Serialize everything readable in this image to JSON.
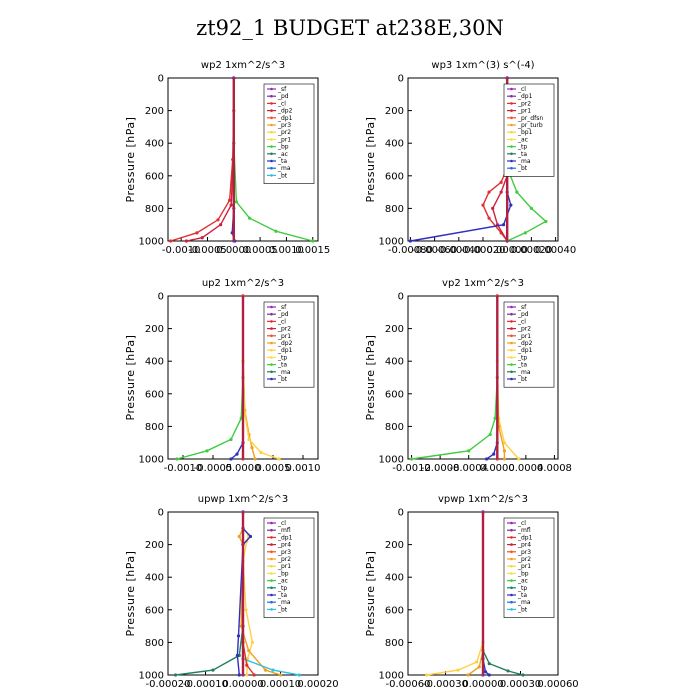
{
  "figure": {
    "title": "zt92_1  BUDGET at238E,30N"
  },
  "chart_data": [
    {
      "type": "line",
      "title": "wp2   1xm^2/s^3",
      "ylabel": "Pressure [hPa]",
      "ylim": [
        1000,
        0
      ],
      "xlim": [
        -0.00125,
        0.0016
      ],
      "xticks": [
        -0.001,
        -0.0005,
        0.0,
        0.0005,
        0.001,
        0.0015
      ],
      "xtick_labels": [
        "-0.0010",
        "-0.0005",
        "0.0000",
        "0.0005",
        "0.0010",
        "0.0015"
      ],
      "yticks": [
        0,
        200,
        400,
        600,
        800,
        1000
      ],
      "legend_position": "top-right",
      "legend": [
        "_sf",
        "_pd",
        "_cl",
        "_dp2",
        "_dp1",
        "_pr3",
        "_pr2",
        "_pr1",
        "_bp",
        "_ac",
        "_ta",
        "_ma",
        "_bt"
      ],
      "series": [
        {
          "name": "_dp2",
          "color": "#e03030",
          "values": [
            [
              0,
              0
            ],
            [
              0,
              200
            ],
            [
              -2e-05,
              500
            ],
            [
              -8e-05,
              750
            ],
            [
              -0.0003,
              870
            ],
            [
              -0.0007,
              950
            ],
            [
              -0.0012,
              1000
            ]
          ]
        },
        {
          "name": "_dp1",
          "color": "#d02040",
          "values": [
            [
              0,
              0
            ],
            [
              0,
              400
            ],
            [
              -5e-05,
              780
            ],
            [
              -0.00025,
              900
            ],
            [
              -0.0006,
              980
            ],
            [
              -0.0009,
              1000
            ]
          ]
        },
        {
          "name": "_bp",
          "color": "#40cc40",
          "values": [
            [
              0,
              0
            ],
            [
              0,
              400
            ],
            [
              5e-05,
              760
            ],
            [
              0.0003,
              860
            ],
            [
              0.0008,
              940
            ],
            [
              0.0015,
              1000
            ]
          ]
        },
        {
          "name": "_ma",
          "color": "#3030c0",
          "values": [
            [
              0,
              0
            ],
            [
              0,
              800
            ],
            [
              -3e-05,
              950
            ],
            [
              2e-05,
              1000
            ]
          ]
        },
        {
          "name": "_bt",
          "color": "#8030a0",
          "values": [
            [
              0,
              0
            ],
            [
              0,
              1000
            ]
          ]
        }
      ]
    },
    {
      "type": "line",
      "title": "wp3   1xm^(3) s^(-4)",
      "ylabel": "Pressure [hPa]",
      "ylim": [
        1000,
        0
      ],
      "xlim": [
        -0.00082,
        0.00042
      ],
      "xticks": [
        -0.0008,
        -0.0006,
        -0.0004,
        -0.0002,
        0.0,
        0.0002,
        0.0004
      ],
      "xtick_labels": [
        "-0.00080",
        "-0.00060",
        "-0.00040",
        "-0.00020",
        "0.00000",
        "0.00020",
        "0.00040"
      ],
      "yticks": [
        0,
        200,
        400,
        600,
        800,
        1000
      ],
      "legend_position": "top-right",
      "legend": [
        "_cl",
        "_dp1",
        "_pr2",
        "_pr1",
        "_pr_dfsn",
        "_pr_turb",
        "_bp1",
        "_ac",
        "_tp",
        "_ta",
        "_ma",
        "_bt"
      ],
      "series": [
        {
          "name": "_dp1",
          "color": "#e03030",
          "values": [
            [
              0,
              0
            ],
            [
              0,
              550
            ],
            [
              -5e-05,
              640
            ],
            [
              -0.00015,
              700
            ],
            [
              -0.0002,
              780
            ],
            [
              -0.00015,
              860
            ],
            [
              -5e-05,
              950
            ],
            [
              0,
              1000
            ]
          ]
        },
        {
          "name": "_pr1",
          "color": "#d02040",
          "values": [
            [
              0,
              0
            ],
            [
              0,
              600
            ],
            [
              -5e-05,
              700
            ],
            [
              -0.00012,
              800
            ],
            [
              -8e-05,
              900
            ],
            [
              0,
              1000
            ]
          ]
        },
        {
          "name": "_bp1",
          "color": "#40cc40",
          "values": [
            [
              0,
              0
            ],
            [
              0,
              550
            ],
            [
              8e-05,
              700
            ],
            [
              0.0002,
              800
            ],
            [
              0.00032,
              880
            ],
            [
              0.00015,
              950
            ],
            [
              0,
              1000
            ]
          ]
        },
        {
          "name": "_ta",
          "color": "#3030c0",
          "values": [
            [
              0,
              0
            ],
            [
              0,
              700
            ],
            [
              3e-05,
              780
            ],
            [
              -3e-05,
              900
            ],
            [
              -0.0008,
              1000
            ]
          ]
        },
        {
          "name": "_bt",
          "color": "#8030a0",
          "values": [
            [
              0,
              0
            ],
            [
              0,
              1000
            ]
          ]
        }
      ]
    },
    {
      "type": "line",
      "title": "up2   1xm^2/s^3",
      "ylabel": "Pressure [hPa]",
      "ylim": [
        1000,
        0
      ],
      "xlim": [
        -0.00125,
        0.00125
      ],
      "xticks": [
        -0.001,
        -0.0005,
        0.0,
        0.0005,
        0.001
      ],
      "xtick_labels": [
        "-0.0010",
        "-0.0005",
        "0.0000",
        "0.0005",
        "0.0010"
      ],
      "yticks": [
        0,
        200,
        400,
        600,
        800,
        1000
      ],
      "legend_position": "top-right",
      "legend": [
        "_sf",
        "_pd",
        "_cl",
        "_pr2",
        "_pr1",
        "_dp2",
        "_dp1",
        "_tp",
        "_ta",
        "_ma",
        "_bt"
      ],
      "series": [
        {
          "name": "_pr2",
          "color": "#f0a020",
          "values": [
            [
              0,
              0
            ],
            [
              0,
              400
            ],
            [
              3e-05,
              700
            ],
            [
              0.0001,
              850
            ],
            [
              0.00015,
              930
            ],
            [
              0.0002,
              1000
            ]
          ]
        },
        {
          "name": "_pr1",
          "color": "#ffd040",
          "values": [
            [
              0,
              0
            ],
            [
              0,
              400
            ],
            [
              3e-05,
              720
            ],
            [
              0.0001,
              880
            ],
            [
              0.0003,
              960
            ],
            [
              0.0006,
              1000
            ]
          ]
        },
        {
          "name": "_dp2",
          "color": "#40cc40",
          "values": [
            [
              0,
              0
            ],
            [
              0,
              500
            ],
            [
              -3e-05,
              750
            ],
            [
              -0.0002,
              880
            ],
            [
              -0.0006,
              950
            ],
            [
              -0.0011,
              1000
            ]
          ]
        },
        {
          "name": "_ma",
          "color": "#3030c0",
          "values": [
            [
              0,
              0
            ],
            [
              0,
              900
            ],
            [
              -0.0001,
              970
            ],
            [
              -0.0002,
              1000
            ]
          ]
        },
        {
          "name": "_cl",
          "color": "#e03030",
          "values": [
            [
              0,
              0
            ],
            [
              0,
              1000
            ]
          ]
        }
      ]
    },
    {
      "type": "line",
      "title": "vp2   1xm^2/s^3",
      "ylabel": "Pressure [hPa]",
      "ylim": [
        1000,
        0
      ],
      "xlim": [
        -0.00125,
        0.00085
      ],
      "xticks": [
        -0.0012,
        -0.0008,
        -0.0004,
        0.0,
        0.0004,
        0.0008
      ],
      "xtick_labels": [
        "-0.0012",
        "-0.0008",
        "-0.0004",
        "0.0000",
        "0.0004",
        "0.0008"
      ],
      "yticks": [
        0,
        200,
        400,
        600,
        800,
        1000
      ],
      "legend_position": "top-right",
      "legend": [
        "_sf",
        "_pd",
        "_cl",
        "_pr2",
        "_pr1",
        "_dp2",
        "_dp1",
        "_tp",
        "_ta",
        "_ma",
        "_bt"
      ],
      "series": [
        {
          "name": "_pr1",
          "color": "#ffd040",
          "values": [
            [
              0,
              0
            ],
            [
              0,
              400
            ],
            [
              2e-05,
              750
            ],
            [
              0.0001,
              900
            ],
            [
              0.0003,
              1000
            ]
          ]
        },
        {
          "name": "_pr2",
          "color": "#f0a020",
          "values": [
            [
              0,
              0
            ],
            [
              0,
              500
            ],
            [
              2e-05,
              800
            ],
            [
              0.0001,
              950
            ],
            [
              0.0001,
              1000
            ]
          ]
        },
        {
          "name": "_dp2",
          "color": "#40cc40",
          "values": [
            [
              0,
              0
            ],
            [
              0,
              500
            ],
            [
              -3e-05,
              750
            ],
            [
              -0.0001,
              850
            ],
            [
              -0.0004,
              950
            ],
            [
              -0.0012,
              1000
            ]
          ]
        },
        {
          "name": "_ma",
          "color": "#3030c0",
          "values": [
            [
              0,
              0
            ],
            [
              0,
              900
            ],
            [
              -5e-05,
              970
            ],
            [
              -0.00015,
              1000
            ]
          ]
        },
        {
          "name": "_cl",
          "color": "#e03030",
          "values": [
            [
              0,
              0
            ],
            [
              0,
              1000
            ]
          ]
        }
      ]
    },
    {
      "type": "line",
      "title": "upwp   1xm^2/s^3",
      "ylabel": "Pressure [hPa]",
      "ylim": [
        1000,
        0
      ],
      "xlim": [
        -0.0002,
        0.0002
      ],
      "xticks": [
        -0.0002,
        -0.0001,
        0.0,
        0.0001,
        0.0002
      ],
      "xtick_labels": [
        "-0.00020",
        "-0.00010",
        "0.00000",
        "0.00010",
        "0.00020"
      ],
      "yticks": [
        0,
        200,
        400,
        600,
        800,
        1000
      ],
      "legend_position": "top-right",
      "legend": [
        "_cl",
        "_mfl",
        "_dp1",
        "_pr4",
        "_pr3",
        "_pr2",
        "_pr1",
        "_bp",
        "_ac",
        "_tp",
        "_ta",
        "_ma",
        "_bt"
      ],
      "series": [
        {
          "name": "_pr1",
          "color": "#ffd040",
          "values": [
            [
              0,
              0
            ],
            [
              0,
              100
            ],
            [
              1.5e-05,
              140
            ],
            [
              1e-05,
              180
            ],
            [
              0,
              300
            ],
            [
              8e-06,
              600
            ],
            [
              2.5e-05,
              800
            ],
            [
              1.2e-05,
              900
            ],
            [
              1e-05,
              1000
            ]
          ]
        },
        {
          "name": "_pr2",
          "color": "#f0a020",
          "values": [
            [
              0,
              0
            ],
            [
              0,
              100
            ],
            [
              -1e-05,
              150
            ],
            [
              0,
              200
            ],
            [
              -5e-06,
              700
            ],
            [
              1.5e-05,
              850
            ],
            [
              6e-05,
              970
            ],
            [
              0.0001,
              1000
            ]
          ]
        },
        {
          "name": "_ac",
          "color": "#208060",
          "values": [
            [
              0,
              0
            ],
            [
              0,
              700
            ],
            [
              -1e-05,
              880
            ],
            [
              -8e-05,
              970
            ],
            [
              -0.00018,
              1000
            ]
          ]
        },
        {
          "name": "_ta",
          "color": "#3030c0",
          "values": [
            [
              0,
              0
            ],
            [
              0,
              100
            ],
            [
              2e-05,
              150
            ],
            [
              0,
              200
            ],
            [
              -1.2e-05,
              760
            ],
            [
              -1.5e-05,
              880
            ],
            [
              -1e-05,
              1000
            ]
          ]
        },
        {
          "name": "_ma",
          "color": "#30c0e0",
          "values": [
            [
              0,
              0
            ],
            [
              0,
              900
            ],
            [
              8e-05,
              970
            ],
            [
              0.00015,
              1000
            ]
          ]
        },
        {
          "name": "_dp1",
          "color": "#e03030",
          "values": [
            [
              0,
              0
            ],
            [
              0,
              800
            ],
            [
              1e-05,
              940
            ],
            [
              3e-05,
              1000
            ]
          ]
        },
        {
          "name": "_bt",
          "color": "#8030a0",
          "values": [
            [
              0,
              0
            ],
            [
              0,
              1000
            ]
          ]
        }
      ]
    },
    {
      "type": "line",
      "title": "vpwp   1xm^2/s^3",
      "ylabel": "Pressure [hPa]",
      "ylim": [
        1000,
        0
      ],
      "xlim": [
        -0.0006,
        0.0006
      ],
      "xticks": [
        -0.0006,
        -0.0003,
        0.0,
        0.0003,
        0.0006
      ],
      "xtick_labels": [
        "-0.00060",
        "-0.00030",
        "0.00000",
        "0.00030",
        "0.00060"
      ],
      "yticks": [
        0,
        200,
        400,
        600,
        800,
        1000
      ],
      "legend_position": "top-right",
      "legend": [
        "_cl",
        "_mfl",
        "_dp1",
        "_pr4",
        "_pr3",
        "_pr2",
        "_pr1",
        "_bp",
        "_ac",
        "_tp",
        "_ta",
        "_ma",
        "_bt"
      ],
      "series": [
        {
          "name": "_pr1",
          "color": "#ffd040",
          "values": [
            [
              0,
              0
            ],
            [
              0,
              800
            ],
            [
              -5e-05,
              920
            ],
            [
              -0.0002,
              970
            ],
            [
              -0.00045,
              1000
            ]
          ]
        },
        {
          "name": "_ac",
          "color": "#208060",
          "values": [
            [
              0,
              0
            ],
            [
              0,
              850
            ],
            [
              5e-05,
              930
            ],
            [
              0.0002,
              975
            ],
            [
              0.00032,
              1000
            ]
          ]
        },
        {
          "name": "_pr2",
          "color": "#f0a020",
          "values": [
            [
              0,
              0
            ],
            [
              0,
              850
            ],
            [
              -3e-05,
              950
            ],
            [
              -0.00012,
              1000
            ]
          ]
        },
        {
          "name": "_ta",
          "color": "#3030c0",
          "values": [
            [
              0,
              0
            ],
            [
              0,
              900
            ],
            [
              2e-05,
              980
            ],
            [
              5e-05,
              1000
            ]
          ]
        },
        {
          "name": "_bt",
          "color": "#8030a0",
          "values": [
            [
              0,
              0
            ],
            [
              0,
              1000
            ]
          ]
        }
      ]
    }
  ]
}
